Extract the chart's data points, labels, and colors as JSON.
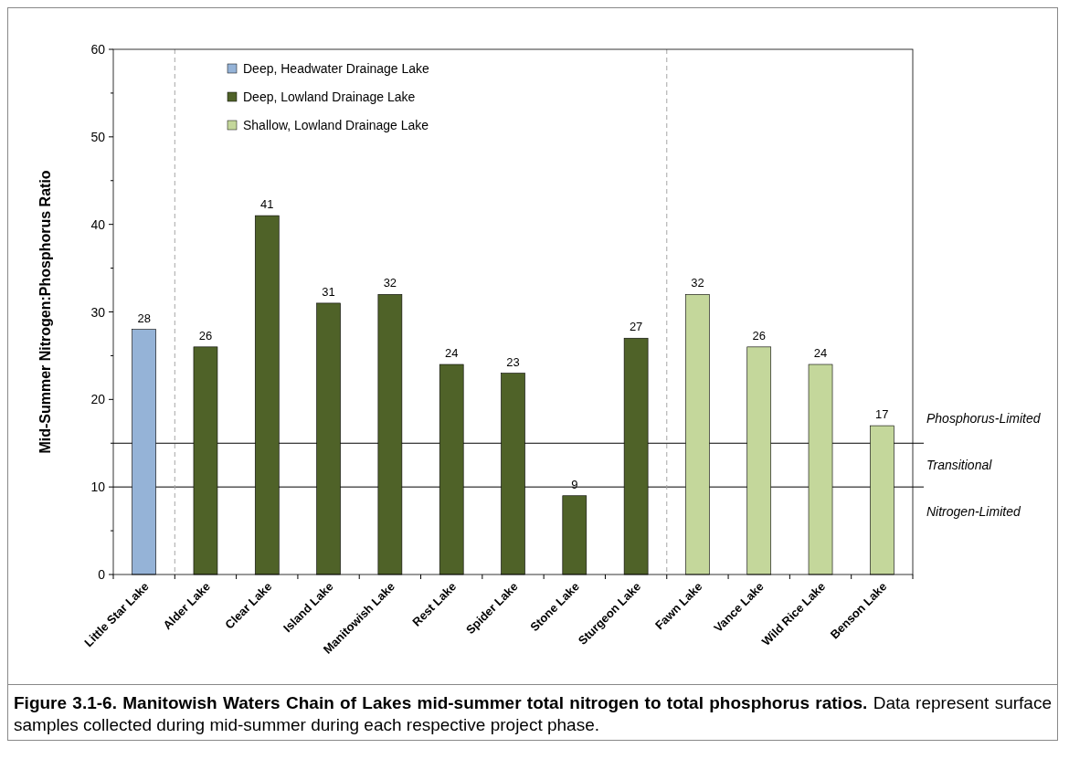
{
  "chart_data": {
    "type": "bar",
    "stacked": true,
    "title": "Figure 3.1-6.  Manitowish Waters Chain of Lakes mid-summer total nitrogen to total phosphorus ratios.",
    "ylabel": "Mid-Summer Nitrogen:Phosphorus Ratio",
    "categories": [
      "Little Star Lake",
      "Alder Lake",
      "Clear Lake",
      "Island Lake",
      "Manitowish Lake",
      "Rest Lake",
      "Spider Lake",
      "Stone Lake",
      "Sturgeon Lake",
      "Fawn Lake",
      "Vance Lake",
      "Wild Rice Lake",
      "Benson Lake"
    ],
    "series": [
      {
        "name": "Deep, Headwater Drainage Lake",
        "color": "#95b3d7",
        "values": [
          28,
          null,
          null,
          null,
          null,
          null,
          null,
          null,
          null,
          null,
          null,
          null,
          null
        ]
      },
      {
        "name": "Deep, Lowland Drainage Lake",
        "color": "#4f6228",
        "values": [
          null,
          26,
          41,
          31,
          32,
          24,
          23,
          9,
          27,
          null,
          null,
          null,
          null
        ]
      },
      {
        "name": "Shallow, Lowland Drainage Lake",
        "color": "#c4d79b",
        "values": [
          null,
          null,
          null,
          null,
          null,
          null,
          null,
          null,
          null,
          32,
          26,
          24,
          17
        ]
      }
    ],
    "ylim": [
      0,
      60
    ],
    "yticks": [
      0,
      10,
      20,
      30,
      40,
      50,
      60
    ],
    "grid": false,
    "legend": "top",
    "data_labels": true,
    "ref_lines": [
      {
        "axis": "y",
        "value": 15,
        "color": "#000000"
      },
      {
        "axis": "y",
        "value": 10,
        "color": "#000000"
      }
    ],
    "annotations": [
      "Phosphorus-Limited",
      "Transitional",
      "Nitrogen-Limited",
      "Data represent surface samples collected during mid-summer during each respective project phase."
    ]
  }
}
